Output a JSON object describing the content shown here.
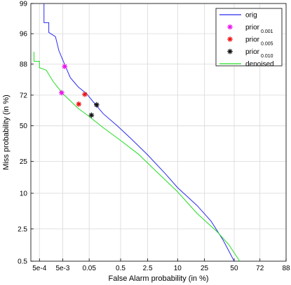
{
  "chart_data": {
    "type": "line",
    "plot_kind": "DET curve (probit-scaled axes)",
    "xlabel": "False Alarm probability (in %)",
    "ylabel": "Miss probability (in %)",
    "xlim": [
      0.0002,
      88
    ],
    "ylim": [
      0.5,
      99
    ],
    "x_ticks": [
      {
        "label": "5e-4",
        "value": 0.0005
      },
      {
        "label": "5e-3",
        "value": 0.005
      },
      {
        "label": "0.05",
        "value": 0.05
      },
      {
        "label": "0.5",
        "value": 0.5
      },
      {
        "label": "2.5",
        "value": 2.5
      },
      {
        "label": "10",
        "value": 10
      },
      {
        "label": "25",
        "value": 25
      },
      {
        "label": "50",
        "value": 50
      },
      {
        "label": "72",
        "value": 72
      },
      {
        "label": "88",
        "value": 88
      }
    ],
    "y_ticks": [
      {
        "label": "99",
        "value": 99
      },
      {
        "label": "96",
        "value": 96
      },
      {
        "label": "88",
        "value": 88
      },
      {
        "label": "72",
        "value": 72
      },
      {
        "label": "50",
        "value": 50
      },
      {
        "label": "25",
        "value": 25
      },
      {
        "label": "10",
        "value": 10
      },
      {
        "label": "2.5",
        "value": 2.5
      },
      {
        "label": "0.5",
        "value": 0.5
      }
    ],
    "grid": true,
    "legend_position": "top-right",
    "series": [
      {
        "name": "orig",
        "kind": "line",
        "color": "#2b2bf0",
        "points": [
          [
            0.0008,
            99
          ],
          [
            0.0008,
            97.5
          ],
          [
            0.0013,
            97.5
          ],
          [
            0.0013,
            96.2
          ],
          [
            0.0025,
            95.5
          ],
          [
            0.0035,
            92.3
          ],
          [
            0.005,
            89.5
          ],
          [
            0.006,
            87.8
          ],
          [
            0.01,
            82
          ],
          [
            0.02,
            77
          ],
          [
            0.04,
            73
          ],
          [
            0.08,
            66
          ],
          [
            0.15,
            59
          ],
          [
            0.4,
            50
          ],
          [
            1.0,
            40
          ],
          [
            2.5,
            29
          ],
          [
            6,
            18
          ],
          [
            10,
            12
          ],
          [
            20,
            6.5
          ],
          [
            30,
            3.5
          ],
          [
            40,
            1.5
          ],
          [
            50,
            0.5
          ]
        ]
      },
      {
        "name": "denoised",
        "kind": "line",
        "color": "#22dd22",
        "points": [
          [
            0.00028,
            92
          ],
          [
            0.00028,
            89
          ],
          [
            0.0005,
            89
          ],
          [
            0.0005,
            86.5
          ],
          [
            0.001,
            85.5
          ],
          [
            0.002,
            80
          ],
          [
            0.005,
            73
          ],
          [
            0.02,
            63
          ],
          [
            0.05,
            57
          ],
          [
            0.15,
            48.5
          ],
          [
            0.5,
            39
          ],
          [
            1.5,
            29.5
          ],
          [
            4,
            19
          ],
          [
            10,
            10.5
          ],
          [
            20,
            4.8
          ],
          [
            35,
            2.2
          ],
          [
            45,
            1.2
          ],
          [
            55,
            0.5
          ]
        ]
      },
      {
        "name": "prior 0.001",
        "label_main": "prior",
        "label_sub": "0.001",
        "kind": "marker",
        "color": "#ee11ee",
        "points": [
          [
            0.006,
            87
          ],
          [
            0.0045,
            73.5
          ]
        ]
      },
      {
        "name": "prior 0.005",
        "label_main": "prior",
        "label_sub": "0.005",
        "kind": "marker",
        "color": "#ee1111",
        "points": [
          [
            0.035,
            72.5
          ],
          [
            0.021,
            66
          ]
        ]
      },
      {
        "name": "prior 0.010",
        "label_main": "prior",
        "label_sub": "0.010",
        "kind": "marker",
        "color": "#111111",
        "points": [
          [
            0.09,
            65.5
          ],
          [
            0.06,
            58
          ]
        ]
      }
    ],
    "legend": [
      {
        "label_main": "orig",
        "label_sub": "",
        "kind": "line",
        "color": "#2b2bf0"
      },
      {
        "label_main": "prior",
        "label_sub": "0.001",
        "kind": "marker",
        "color": "#ee11ee"
      },
      {
        "label_main": "prior",
        "label_sub": "0.005",
        "kind": "marker",
        "color": "#ee1111"
      },
      {
        "label_main": "prior",
        "label_sub": "0.010",
        "kind": "marker",
        "color": "#111111"
      },
      {
        "label_main": "denoised",
        "label_sub": "",
        "kind": "line",
        "color": "#22dd22"
      }
    ]
  }
}
